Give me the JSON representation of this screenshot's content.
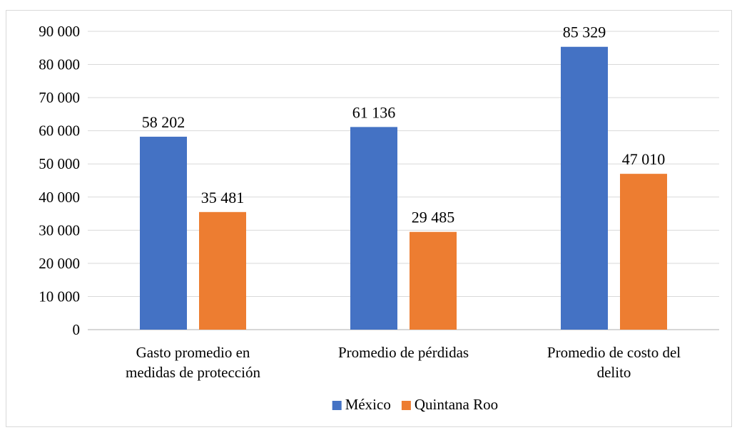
{
  "chart_data": {
    "type": "bar",
    "categories": [
      [
        "Gasto promedio en",
        "medidas de protección"
      ],
      [
        "Promedio de pérdidas"
      ],
      [
        "Promedio de costo del",
        "delito"
      ]
    ],
    "series": [
      {
        "name": "México",
        "color": "#4472c4",
        "values": [
          58202,
          61136,
          85329
        ],
        "labels": [
          "58 202",
          "61 136",
          "85 329"
        ]
      },
      {
        "name": "Quintana Roo",
        "color": "#ed7d31",
        "values": [
          35481,
          29485,
          47010
        ],
        "labels": [
          "35 481",
          "29 485",
          "47 010"
        ]
      }
    ],
    "ylim": [
      0,
      90000
    ],
    "yticks": [
      0,
      10000,
      20000,
      30000,
      40000,
      50000,
      60000,
      70000,
      80000,
      90000
    ],
    "ytick_labels": [
      "0",
      "10 000",
      "20 000",
      "30 000",
      "40 000",
      "50 000",
      "60 000",
      "70 000",
      "80 000",
      "90 000"
    ],
    "grid": true,
    "legend": "bottom",
    "title": "",
    "xlabel": "",
    "ylabel": ""
  }
}
